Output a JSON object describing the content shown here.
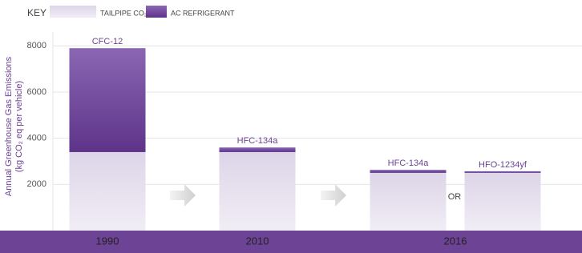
{
  "chart_data": {
    "type": "stacked-bar",
    "legend_title": "KEY",
    "ylabel": [
      "Annual Greenhouse Gas Emissions",
      "(kg CO₂ eq per vehicle)"
    ],
    "categories": [
      "CFC-12",
      "HFC-134a",
      "HFC-134a",
      "HFO-1234yf"
    ],
    "years": [
      "1990",
      "2010",
      "2016"
    ],
    "annotation": "OR",
    "series": [
      {
        "name": "TAILPIPE CO₂",
        "color": "#e2dbeb",
        "values": [
          3400,
          3400,
          2500,
          2500
        ]
      },
      {
        "name": "AC REFRIGERANT",
        "color": "#6e4399",
        "values": [
          4500,
          200,
          130,
          70
        ]
      }
    ],
    "ylim": [
      0,
      8600
    ],
    "yticks": [
      2000,
      4000,
      6000,
      8000
    ],
    "grid": true
  }
}
